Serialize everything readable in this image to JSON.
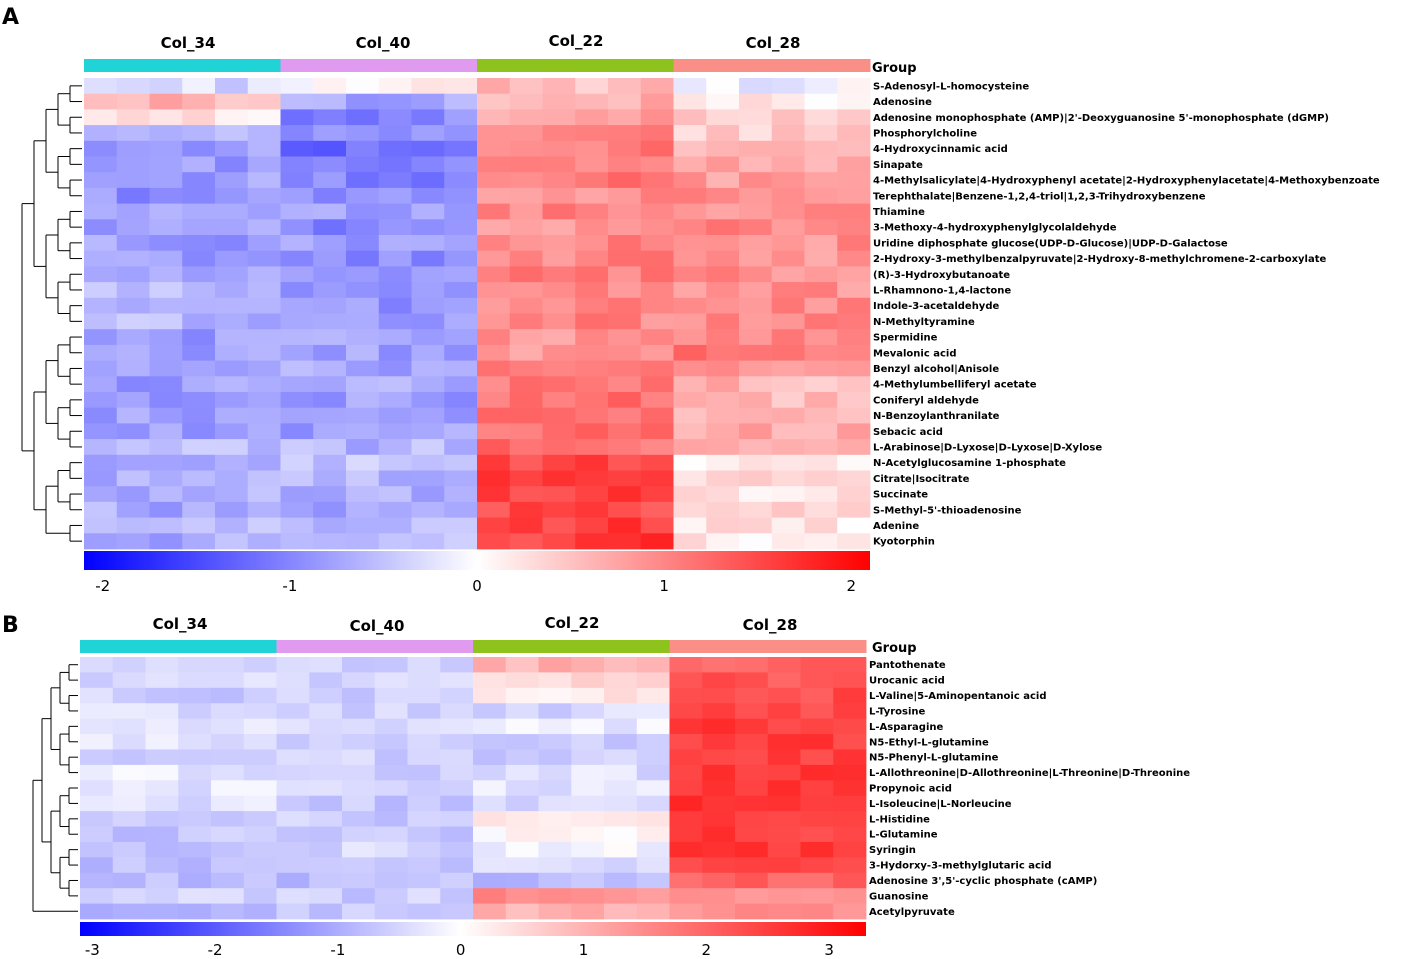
{
  "chart_data": [
    {
      "type": "heatmap",
      "panel": "A",
      "columns": [
        "Col_34",
        "Col_40",
        "Col_22",
        "Col_28"
      ],
      "group_label": "Group",
      "group_colors": [
        "#1fd3d6",
        "#e09af0",
        "#8ec21c",
        "#f98f86"
      ],
      "replicates_per_group": 6,
      "rows": [
        "S-Adenosyl-L-homocysteine",
        "Adenosine",
        "Adenosine monophosphate (AMP)|2'-Deoxyguanosine 5'-monophosphate (dGMP)",
        "Phosphorylcholine",
        "4-Hydroxycinnamic acid",
        "Sinapate",
        "4-Methylsalicylate|4-Hydroxyphenyl acetate|2-Hydroxyphenylacetate|4-Methoxybenzoate",
        "Terephthalate|Benzene-1,2,4-triol|1,2,3-Trihydroxybenzene",
        "Thiamine",
        "3-Methoxy-4-hydroxyphenylglycolaldehyde",
        "Uridine diphosphate glucose(UDP-D-Glucose)|UDP-D-Galactose",
        "2-Hydroxy-3-methylbenzalpyruvate|2-Hydroxy-8-methylchromene-2-carboxylate",
        "(R)-3-Hydroxybutanoate",
        "L-Rhamnono-1,4-lactone",
        "Indole-3-acetaldehyde",
        "N-Methyltyramine",
        "Spermidine",
        "Mevalonic acid",
        "Benzyl alcohol|Anisole",
        "4-Methylumbelliferyl acetate",
        "Coniferyl aldehyde",
        "N-Benzoylanthranilate",
        "Sebacic acid",
        "L-Arabinose|D-Lyxose|D-Lyxose|D-Xylose",
        "N-Acetylglucosamine 1-phosphate",
        "Citrate|Isocitrate",
        "Succinate",
        "S-Methyl-5'-thioadenosine",
        "Adenine",
        "Kyotorphin"
      ],
      "group_means": [
        [
          -0.3,
          0.1,
          0.5,
          -0.1
        ],
        [
          0.6,
          -0.7,
          0.6,
          0.2
        ],
        [
          0.2,
          -1.0,
          0.7,
          0.5
        ],
        [
          -0.7,
          -0.9,
          1.0,
          0.4
        ],
        [
          -0.8,
          -1.2,
          1.1,
          0.7
        ],
        [
          -0.8,
          -1.1,
          1.1,
          0.7
        ],
        [
          -0.8,
          -1.0,
          1.1,
          0.8
        ],
        [
          -0.9,
          -0.9,
          0.9,
          1.0
        ],
        [
          -0.8,
          -0.8,
          1.0,
          0.9
        ],
        [
          -0.8,
          -1.0,
          0.9,
          1.0
        ],
        [
          -0.8,
          -0.8,
          1.0,
          0.9
        ],
        [
          -0.8,
          -1.0,
          1.0,
          0.9
        ],
        [
          -0.7,
          -0.9,
          1.0,
          0.9
        ],
        [
          -0.6,
          -0.9,
          1.0,
          0.9
        ],
        [
          -0.6,
          -0.9,
          1.0,
          1.0
        ],
        [
          -0.6,
          -0.8,
          1.0,
          1.0
        ],
        [
          -0.8,
          -0.8,
          0.9,
          1.0
        ],
        [
          -0.8,
          -0.8,
          0.9,
          1.1
        ],
        [
          -0.8,
          -0.7,
          1.0,
          0.8
        ],
        [
          -0.8,
          -0.6,
          1.1,
          0.6
        ],
        [
          -0.8,
          -0.8,
          1.2,
          0.5
        ],
        [
          -0.8,
          -0.8,
          1.2,
          0.6
        ],
        [
          -0.8,
          -0.8,
          1.2,
          0.7
        ],
        [
          -0.6,
          -0.6,
          1.2,
          0.6
        ],
        [
          -0.6,
          -0.5,
          1.5,
          0.1
        ],
        [
          -0.7,
          -0.6,
          1.6,
          0.3
        ],
        [
          -0.7,
          -0.7,
          1.6,
          0.2
        ],
        [
          -0.7,
          -0.7,
          1.5,
          0.3
        ],
        [
          -0.6,
          -0.6,
          1.6,
          0.2
        ],
        [
          -0.7,
          -0.6,
          1.6,
          0.2
        ]
      ],
      "colorbar": {
        "ticks": [
          "-2",
          "-1",
          "0",
          "1",
          "2"
        ],
        "range": [
          -2.1,
          2.1
        ]
      }
    },
    {
      "type": "heatmap",
      "panel": "B",
      "columns": [
        "Col_34",
        "Col_40",
        "Col_22",
        "Col_28"
      ],
      "group_label": "Group",
      "group_colors": [
        "#1fd3d6",
        "#e09af0",
        "#8ec21c",
        "#f98f86"
      ],
      "replicates_per_group": 6,
      "rows": [
        "Pantothenate",
        "Urocanic acid",
        "L-Valine|5-Aminopentanoic acid",
        "L-Tyrosine",
        "L-Asparagine",
        "N5-Ethyl-L-glutamine",
        "N5-Phenyl-L-glutamine",
        "L-Allothreonine|D-Allothreonine|L-Threonine|D-Threonine",
        "Propynoic acid",
        "L-Isoleucine|L-Norleucine",
        "L-Histidine",
        "L-Glutamine",
        "Syringin",
        "3-Hydorxy-3-methylglutaric acid",
        "Adenosine 3',5'-cyclic phosphate (cAMP)",
        "Guanosine",
        "Acetylpyruvate"
      ],
      "group_means": [
        [
          -0.6,
          -0.6,
          1.0,
          2.0
        ],
        [
          -0.5,
          -0.5,
          0.6,
          2.2
        ],
        [
          -0.6,
          -0.6,
          0.3,
          2.3
        ],
        [
          -0.4,
          -0.6,
          -0.5,
          2.4
        ],
        [
          -0.3,
          -0.5,
          -0.3,
          2.5
        ],
        [
          -0.4,
          -0.6,
          -0.6,
          2.5
        ],
        [
          -0.6,
          -0.6,
          -0.6,
          2.5
        ],
        [
          -0.3,
          -0.6,
          -0.4,
          2.6
        ],
        [
          -0.3,
          -0.6,
          -0.3,
          2.6
        ],
        [
          -0.4,
          -0.7,
          -0.4,
          2.6
        ],
        [
          -0.7,
          -0.6,
          0.2,
          2.4
        ],
        [
          -0.7,
          -0.6,
          0.1,
          2.5
        ],
        [
          -0.7,
          -0.5,
          -0.1,
          2.5
        ],
        [
          -0.8,
          -0.7,
          -0.4,
          2.4
        ],
        [
          -0.8,
          -0.8,
          -0.8,
          2.0
        ],
        [
          -0.6,
          -0.6,
          1.5,
          1.3
        ],
        [
          -0.8,
          -0.7,
          1.0,
          1.4
        ]
      ],
      "colorbar": {
        "ticks": [
          "-3",
          "-2",
          "-1",
          "0",
          "1",
          "2",
          "3"
        ],
        "range": [
          -3.1,
          3.3
        ]
      }
    }
  ],
  "panel_letters": [
    "A",
    "B"
  ]
}
